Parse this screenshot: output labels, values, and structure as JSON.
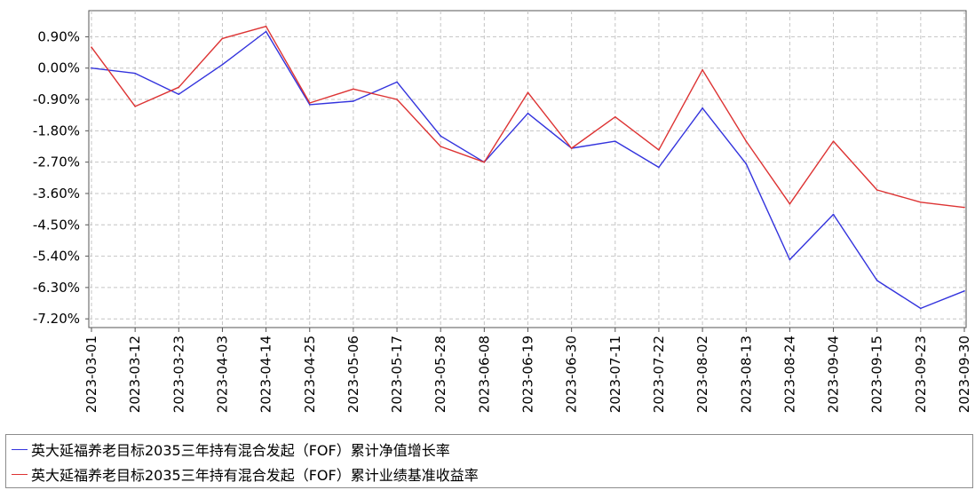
{
  "chart_data": {
    "type": "line",
    "title": "",
    "xlabel": "",
    "ylabel": "",
    "x": [
      "2023-03-01",
      "2023-03-12",
      "2023-03-23",
      "2023-04-03",
      "2023-04-14",
      "2023-04-25",
      "2023-05-06",
      "2023-05-17",
      "2023-05-28",
      "2023-06-08",
      "2023-06-19",
      "2023-06-30",
      "2023-07-11",
      "2023-07-22",
      "2023-08-02",
      "2023-08-13",
      "2023-08-24",
      "2023-09-04",
      "2023-09-15",
      "2023-09-23",
      "2023-09-30"
    ],
    "y_ticks": [
      "0.90%",
      "0.00%",
      "-0.90%",
      "-1.80%",
      "-2.70%",
      "-3.60%",
      "-4.50%",
      "-5.40%",
      "-6.30%",
      "-7.20%"
    ],
    "ylim": [
      -7.45,
      1.65
    ],
    "grid": true,
    "legend_position": "bottom",
    "series": [
      {
        "name": "英大延福养老目标2035三年持有混合发起（FOF）累计净值增长率",
        "color": "#3333dd",
        "values": [
          0.0,
          -0.15,
          -0.75,
          0.1,
          1.05,
          -1.05,
          -0.95,
          -0.4,
          -1.95,
          -2.7,
          -1.3,
          -2.3,
          -2.1,
          -2.85,
          -1.15,
          -2.75,
          -5.5,
          -4.2,
          -6.1,
          -6.9,
          -6.4
        ]
      },
      {
        "name": "英大延福养老目标2035三年持有混合发起（FOF）累计业绩基准收益率",
        "color": "#dd3333",
        "values": [
          0.6,
          -1.1,
          -0.55,
          0.85,
          1.2,
          -1.0,
          -0.6,
          -0.9,
          -2.25,
          -2.7,
          -0.7,
          -2.3,
          -1.4,
          -2.35,
          -0.05,
          -2.1,
          -3.9,
          -2.1,
          -3.5,
          -3.85,
          -4.0
        ]
      }
    ]
  }
}
